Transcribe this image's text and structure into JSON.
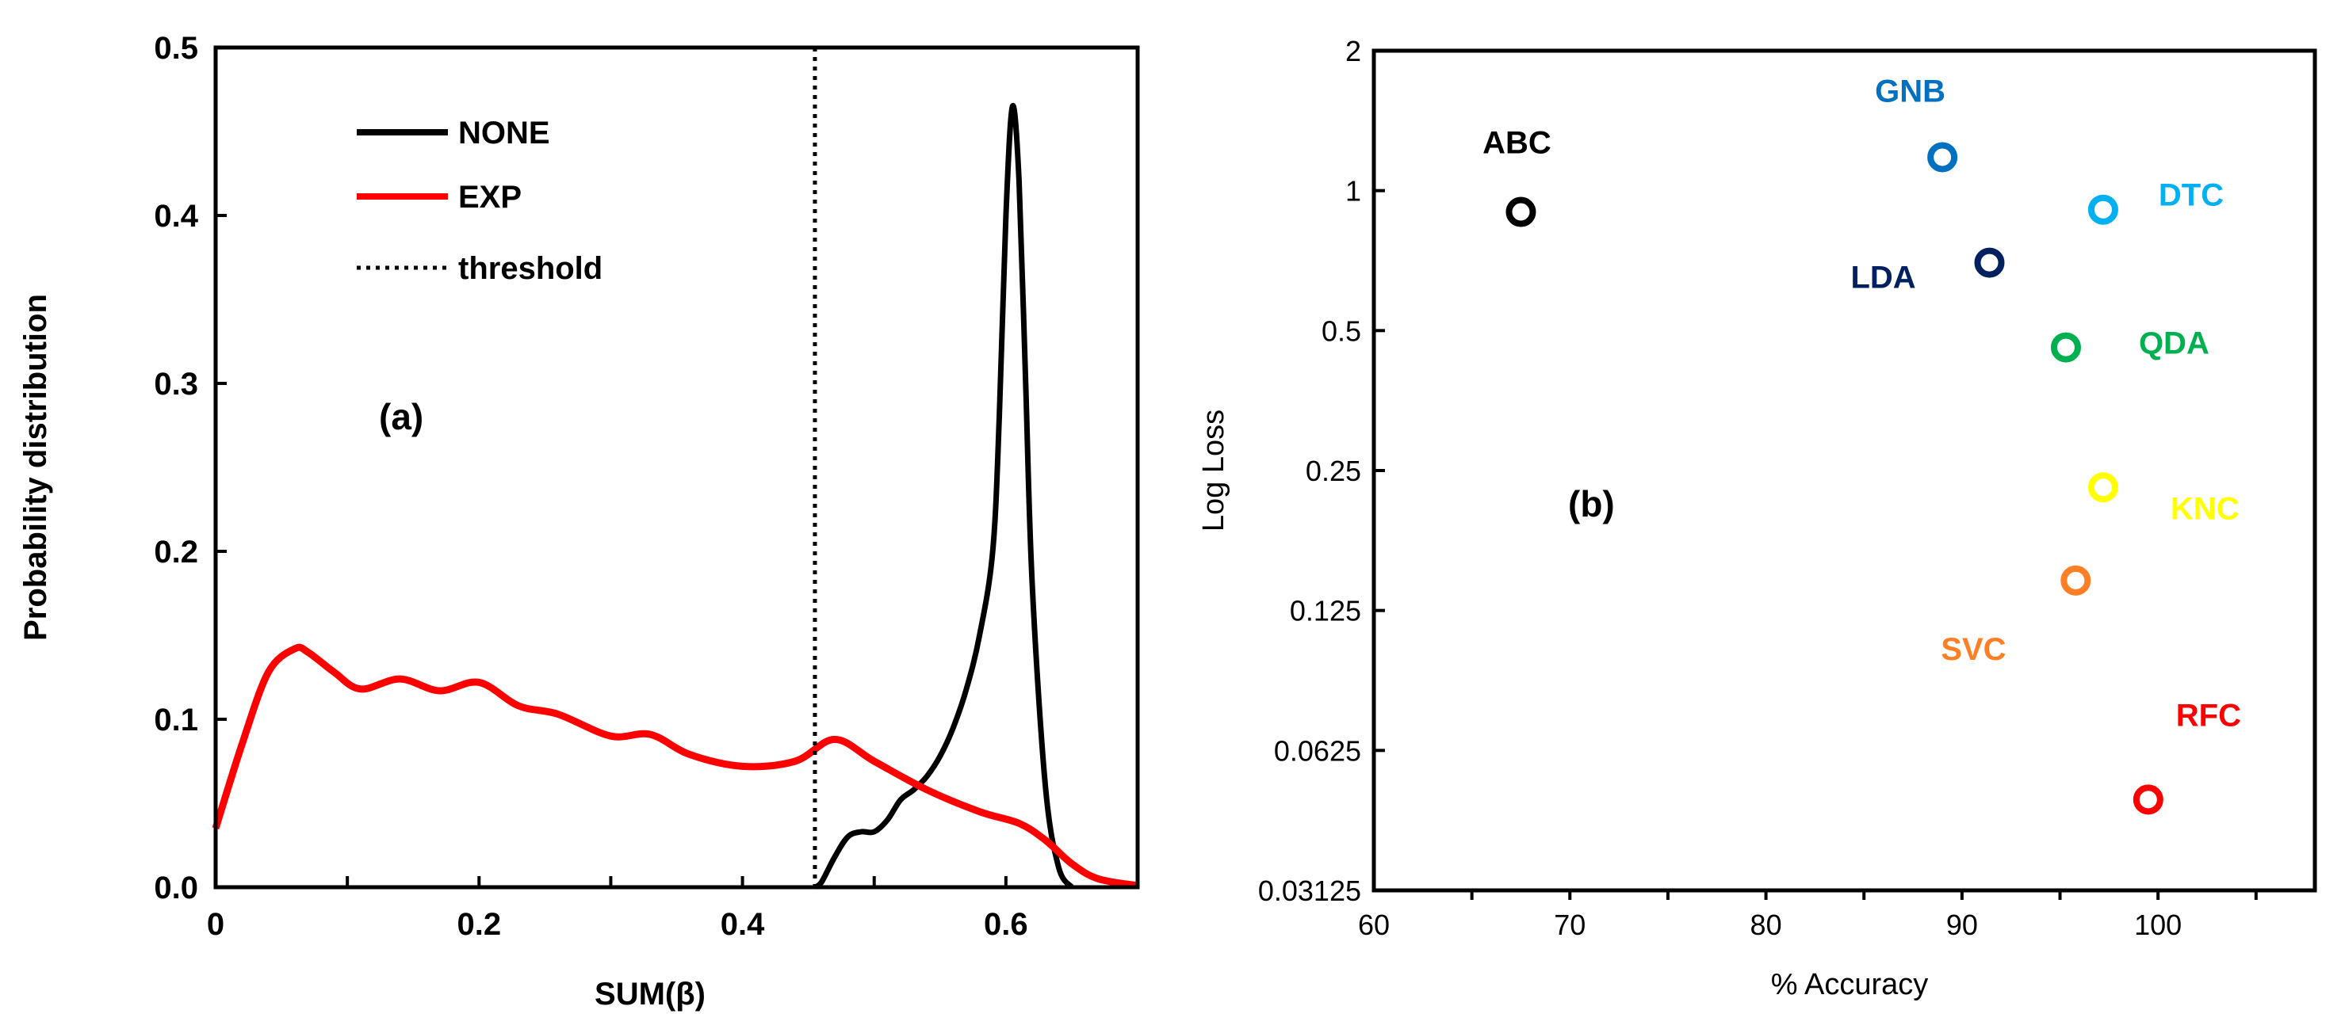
{
  "chart_data": [
    {
      "type": "line",
      "panel_label": "(a)",
      "xlabel": "SUM(β)",
      "ylabel": "Probability distribution",
      "xlim": [
        0,
        0.7
      ],
      "ylim": [
        0,
        0.5
      ],
      "x_ticks": [
        "0",
        "0.2",
        "0.4",
        "0.6"
      ],
      "y_ticks": [
        "0.0",
        "0.1",
        "0.2",
        "0.3",
        "0.4",
        "0.5"
      ],
      "legend": [
        {
          "name": "NONE",
          "color": "#000000",
          "style": "solid"
        },
        {
          "name": "EXP",
          "color": "#ff0000",
          "style": "solid"
        },
        {
          "name": "threshold",
          "color": "#000000",
          "style": "dotted"
        }
      ],
      "threshold": 0.455,
      "series": [
        {
          "name": "NONE",
          "color": "#000000",
          "x": [
            0.455,
            0.46,
            0.47,
            0.48,
            0.49,
            0.5,
            0.51,
            0.52,
            0.53,
            0.54,
            0.55,
            0.56,
            0.57,
            0.58,
            0.59,
            0.595,
            0.6,
            0.605,
            0.61,
            0.615,
            0.62,
            0.63,
            0.64,
            0.65
          ],
          "y": [
            0.0,
            0.003,
            0.018,
            0.03,
            0.033,
            0.033,
            0.04,
            0.052,
            0.058,
            0.066,
            0.078,
            0.095,
            0.118,
            0.15,
            0.2,
            0.28,
            0.4,
            0.465,
            0.42,
            0.3,
            0.18,
            0.06,
            0.012,
            0.0
          ]
        },
        {
          "name": "EXP",
          "color": "#ff0000",
          "x": [
            0.0,
            0.02,
            0.04,
            0.06,
            0.07,
            0.09,
            0.11,
            0.14,
            0.17,
            0.2,
            0.23,
            0.26,
            0.3,
            0.33,
            0.36,
            0.4,
            0.44,
            0.47,
            0.5,
            0.54,
            0.58,
            0.61,
            0.63,
            0.65,
            0.67,
            0.7
          ],
          "y": [
            0.035,
            0.085,
            0.128,
            0.142,
            0.14,
            0.128,
            0.118,
            0.124,
            0.117,
            0.122,
            0.108,
            0.103,
            0.09,
            0.091,
            0.079,
            0.072,
            0.075,
            0.088,
            0.075,
            0.058,
            0.045,
            0.038,
            0.028,
            0.014,
            0.005,
            0.001
          ]
        }
      ]
    },
    {
      "type": "scatter",
      "panel_label": "(b)",
      "xlabel": "% Accuracy",
      "ylabel": "Log Loss",
      "xlim": [
        60,
        108
      ],
      "ylim": [
        0.03125,
        2
      ],
      "yscale": "log2",
      "x_ticks": [
        "60",
        "70",
        "80",
        "90",
        "100"
      ],
      "y_ticks": [
        "0.03125",
        "0.0625",
        "0.125",
        "0.25",
        "0.5",
        "1",
        "2"
      ],
      "points": [
        {
          "label": "ABC",
          "x": 67.5,
          "y": 0.9,
          "color": "#000000"
        },
        {
          "label": "GNB",
          "x": 89.0,
          "y": 1.18,
          "color": "#0070c0"
        },
        {
          "label": "DTC",
          "x": 97.2,
          "y": 0.91,
          "color": "#00b0f0"
        },
        {
          "label": "LDA",
          "x": 91.4,
          "y": 0.7,
          "color": "#002060"
        },
        {
          "label": "QDA",
          "x": 95.3,
          "y": 0.46,
          "color": "#00b050"
        },
        {
          "label": "KNC",
          "x": 97.2,
          "y": 0.23,
          "color": "#ffff00"
        },
        {
          "label": "SVC",
          "x": 95.8,
          "y": 0.145,
          "color": "#ff7f27"
        },
        {
          "label": "RFC",
          "x": 99.5,
          "y": 0.049,
          "color": "#ff0000"
        }
      ]
    }
  ]
}
